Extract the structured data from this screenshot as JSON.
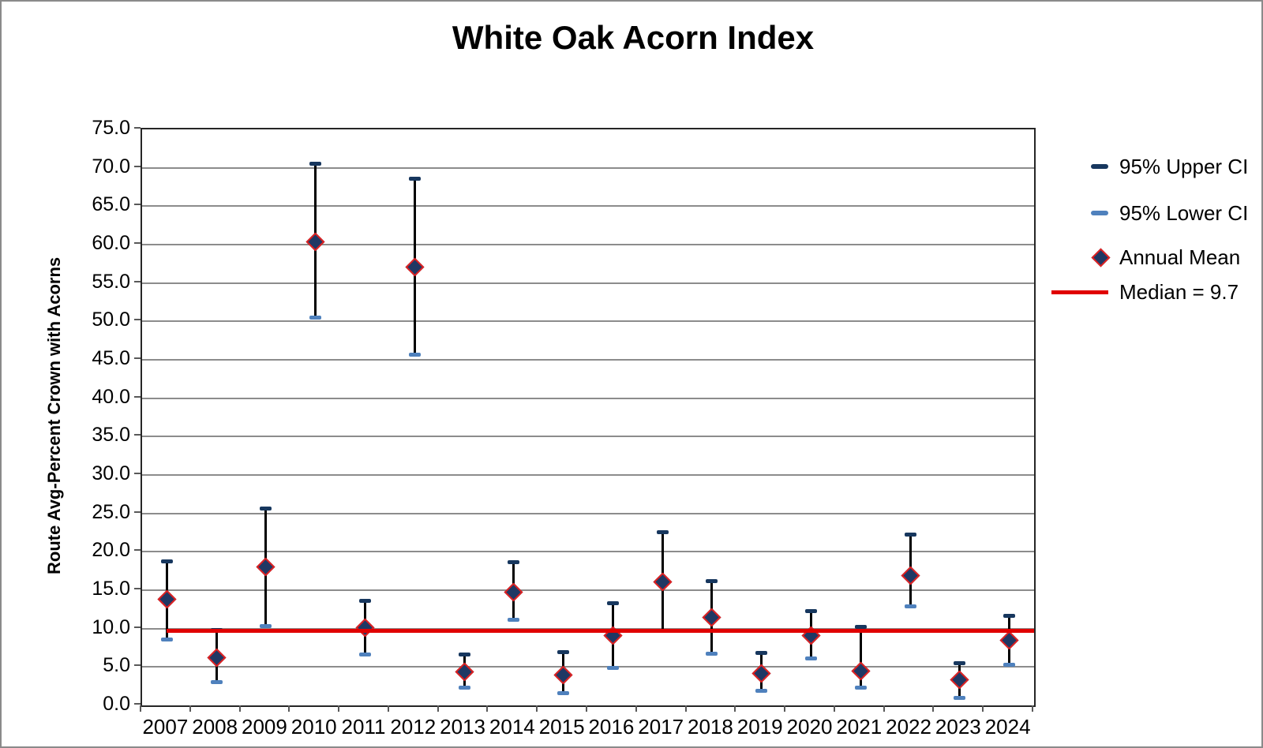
{
  "title": "White Oak Acorn Index",
  "y_axis": {
    "label": "Route Avg-Percent Crown with Acorns",
    "ticks": [
      "75.0",
      "70.0",
      "65.0",
      "60.0",
      "55.0",
      "50.0",
      "45.0",
      "40.0",
      "35.0",
      "30.0",
      "25.0",
      "20.0",
      "15.0",
      "10.0",
      "5.0",
      "0.0"
    ]
  },
  "legend": [
    {
      "label": "95% Upper CI",
      "marker": "dash",
      "color": "#17375E"
    },
    {
      "label": "95% Lower CI",
      "marker": "dash",
      "color": "#4F81BD"
    },
    {
      "label": "Annual Mean",
      "marker": "diamond",
      "color": "#1F3864",
      "border": "#E02020"
    },
    {
      "label": "Median = 9.7",
      "marker": "line",
      "color": "#E00000"
    }
  ],
  "chart_data": {
    "type": "scatter",
    "title": "White Oak Acorn Index",
    "xlabel": "",
    "ylabel": "Route Avg-Percent Crown with Acorns",
    "ylim": [
      0,
      75
    ],
    "ytick_step": 5,
    "grid": "horizontal",
    "legend_position": "right",
    "categories": [
      "2007",
      "2008",
      "2009",
      "2010",
      "2011",
      "2012",
      "2013",
      "2014",
      "2015",
      "2016",
      "2017",
      "2018",
      "2019",
      "2020",
      "2021",
      "2022",
      "2023",
      "2024"
    ],
    "series": [
      {
        "name": "95% Upper CI",
        "values": [
          18.8,
          9.8,
          25.6,
          70.5,
          13.6,
          68.6,
          6.6,
          18.6,
          6.9,
          13.3,
          22.6,
          16.2,
          6.8,
          12.3,
          10.2,
          22.2,
          5.5,
          11.7
        ]
      },
      {
        "name": "95% Lower CI",
        "values": [
          8.6,
          3.0,
          10.3,
          50.5,
          6.6,
          45.7,
          2.3,
          11.1,
          1.6,
          4.9,
          9.7,
          6.7,
          1.9,
          6.1,
          2.3,
          12.9,
          1.0,
          5.3
        ]
      },
      {
        "name": "Annual Mean",
        "values": [
          13.8,
          6.2,
          18.0,
          60.4,
          10.1,
          57.1,
          4.4,
          14.7,
          4.0,
          9.1,
          16.1,
          11.5,
          4.2,
          9.1,
          4.5,
          16.9,
          3.3,
          8.5
        ]
      }
    ],
    "median": 9.7,
    "median_label": "Median = 9.7"
  },
  "colors": {
    "upper_ci": "#17375E",
    "lower_ci": "#4F81BD",
    "mean_fill": "#1F3864",
    "mean_border": "#E02020",
    "median": "#E00000",
    "error_line": "#000000",
    "gridline": "#8C8C8C",
    "frame": "#262626",
    "tick": "#595959",
    "text": "#000000",
    "page_border": "#8A8A8A"
  }
}
